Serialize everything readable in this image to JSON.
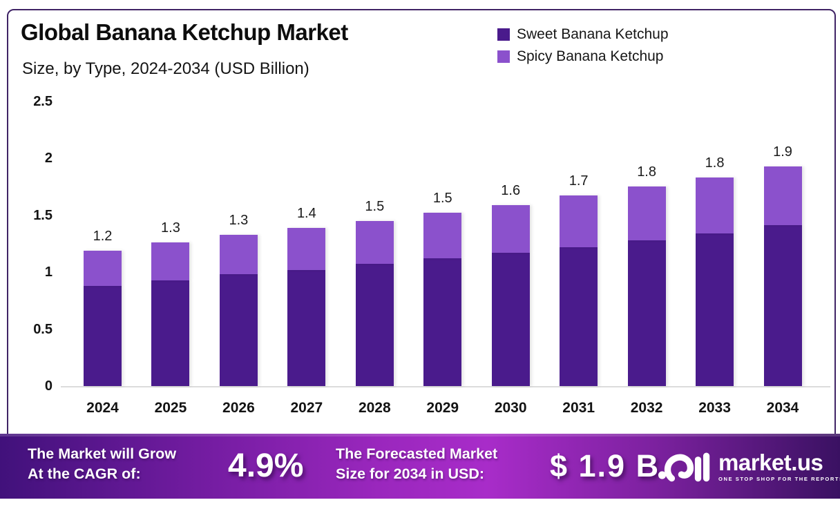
{
  "header": {
    "title": "Global Banana Ketchup Market",
    "subtitle": "Size, by Type, 2024-2034 (USD Billion)"
  },
  "legend": [
    {
      "label": "Sweet Banana Ketchup",
      "color": "#4a1b8c"
    },
    {
      "label": "Spicy Banana Ketchup",
      "color": "#8b51cc"
    }
  ],
  "chart_data": {
    "type": "bar",
    "stacked": true,
    "title": "Global Banana Ketchup Market",
    "subtitle": "Size, by Type, 2024-2034 (USD Billion)",
    "categories": [
      "2024",
      "2025",
      "2026",
      "2027",
      "2028",
      "2029",
      "2030",
      "2031",
      "2032",
      "2033",
      "2034"
    ],
    "series": [
      {
        "name": "Sweet Banana Ketchup",
        "color": "#4a1b8c",
        "values": [
          0.88,
          0.93,
          0.98,
          1.02,
          1.07,
          1.12,
          1.17,
          1.22,
          1.28,
          1.34,
          1.41
        ]
      },
      {
        "name": "Spicy Banana Ketchup",
        "color": "#8b51cc",
        "values": [
          0.31,
          0.33,
          0.35,
          0.37,
          0.38,
          0.4,
          0.42,
          0.45,
          0.47,
          0.49,
          0.52
        ]
      }
    ],
    "total_labels": [
      "1.2",
      "1.3",
      "1.3",
      "1.4",
      "1.5",
      "1.5",
      "1.6",
      "1.7",
      "1.8",
      "1.8",
      "1.9"
    ],
    "ylim": [
      0,
      2.5
    ],
    "yticks": [
      {
        "label": "0",
        "value": 0
      },
      {
        "label": "0.5",
        "value": 0.5
      },
      {
        "label": "1",
        "value": 1
      },
      {
        "label": "1.5",
        "value": 1.5
      },
      {
        "label": "2",
        "value": 2
      },
      {
        "label": "2.5",
        "value": 2.5
      }
    ],
    "grid": false,
    "legend_position": "top-right"
  },
  "banner": {
    "cagr_line1": "The Market will Grow",
    "cagr_line2": "At the CAGR of:",
    "cagr_value": "4.9%",
    "forecast_line1": "The Forecasted Market",
    "forecast_line2": "Size for 2034 in USD:",
    "forecast_value": "$ 1.9 B",
    "logo_name": "market.us",
    "logo_tagline": "ONE STOP SHOP FOR THE REPORTS",
    "gradient_colors": [
      "#41117b",
      "#9a27bd",
      "#a82cc9",
      "#3a1162"
    ]
  }
}
